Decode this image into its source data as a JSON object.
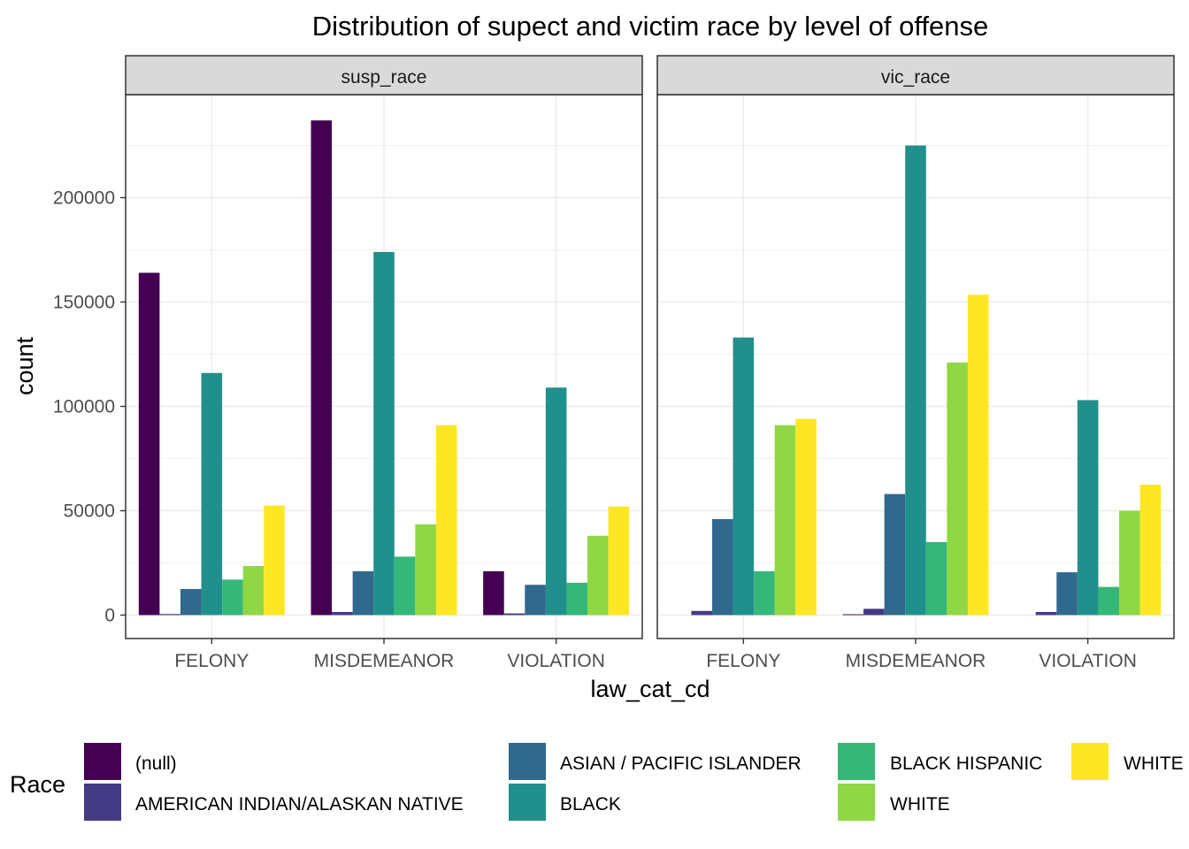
{
  "chart_data": {
    "type": "bar",
    "title": "Distribution of supect and victim race by level of offense",
    "xlabel": "law_cat_cd",
    "ylabel": "count",
    "ylim": [
      0,
      245000
    ],
    "yticks": [
      0,
      50000,
      100000,
      150000,
      200000
    ],
    "ytick_labels": [
      "0",
      "50000",
      "100000",
      "150000",
      "200000"
    ],
    "categories": [
      "FELONY",
      "MISDEMEANOR",
      "VIOLATION"
    ],
    "legend": {
      "title": "Race",
      "position": "bottom",
      "entries": [
        "(null)",
        "AMERICAN INDIAN/ALASKAN NATIVE",
        "ASIAN / PACIFIC ISLANDER",
        "BLACK",
        "BLACK HISPANIC",
        "WHITE",
        "WHITE"
      ]
    },
    "series_colors": [
      "#440154",
      "#443A83",
      "#31688E",
      "#21908C",
      "#35B779",
      "#8FD744",
      "#FDE725"
    ],
    "facets": [
      {
        "name": "susp_race",
        "series": [
          {
            "name": "(null)",
            "values": [
              164000,
              237000,
              21000
            ]
          },
          {
            "name": "AMERICAN INDIAN/ALASKAN NATIVE",
            "values": [
              500,
              1500,
              800
            ]
          },
          {
            "name": "ASIAN / PACIFIC ISLANDER",
            "values": [
              12500,
              21000,
              14500
            ]
          },
          {
            "name": "BLACK",
            "values": [
              116000,
              174000,
              109000
            ]
          },
          {
            "name": "BLACK HISPANIC",
            "values": [
              17000,
              28000,
              15500
            ]
          },
          {
            "name": "WHITE",
            "values": [
              23500,
              43500,
              38000
            ]
          },
          {
            "name": "WHITE",
            "values": [
              52500,
              91000,
              52000
            ]
          }
        ]
      },
      {
        "name": "vic_race",
        "series": [
          {
            "name": "(null)",
            "values": [
              0,
              400,
              0
            ]
          },
          {
            "name": "AMERICAN INDIAN/ALASKAN NATIVE",
            "values": [
              2000,
              3000,
              1500
            ]
          },
          {
            "name": "ASIAN / PACIFIC ISLANDER",
            "values": [
              46000,
              58000,
              20500
            ]
          },
          {
            "name": "BLACK",
            "values": [
              133000,
              225000,
              103000
            ]
          },
          {
            "name": "BLACK HISPANIC",
            "values": [
              21000,
              35000,
              13500
            ]
          },
          {
            "name": "WHITE",
            "values": [
              91000,
              121000,
              50000
            ]
          },
          {
            "name": "WHITE",
            "values": [
              94000,
              153500,
              62500
            ]
          }
        ]
      }
    ]
  }
}
